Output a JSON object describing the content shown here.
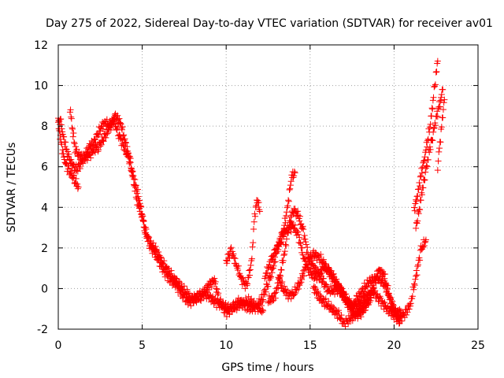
{
  "chart_data": {
    "type": "scatter",
    "title": "Day 275 of 2022, Sidereal Day-to-day VTEC variation (SDTVAR) for receiver av01",
    "xlabel": "GPS time / hours",
    "ylabel": "SDTVAR / TECUs",
    "xlim": [
      0,
      25
    ],
    "ylim": [
      -2,
      12
    ],
    "xticks": [
      "0",
      "5",
      "10",
      "15",
      "20",
      "25"
    ],
    "yticks": [
      "-2",
      "0",
      "2",
      "4",
      "6",
      "8",
      "10",
      "12"
    ],
    "grid": true,
    "marker": "+",
    "color": "#ff0000",
    "series": [
      {
        "name": "SDTVAR",
        "segments": [
          [
            [
              0.0,
              8.3
            ],
            [
              0.15,
              8.2
            ],
            [
              0.3,
              7.5
            ],
            [
              0.5,
              6.8
            ],
            [
              0.7,
              6.3
            ],
            [
              0.9,
              6.0
            ],
            [
              1.1,
              5.9
            ],
            [
              1.3,
              6.1
            ],
            [
              1.6,
              6.6
            ],
            [
              1.9,
              7.0
            ],
            [
              2.2,
              7.3
            ],
            [
              2.5,
              7.9
            ],
            [
              2.8,
              8.2
            ],
            [
              3.1,
              8.0
            ],
            [
              3.4,
              8.5
            ],
            [
              3.7,
              8.2
            ],
            [
              4.0,
              7.2
            ],
            [
              4.3,
              6.2
            ],
            [
              4.5,
              5.2
            ],
            [
              4.7,
              4.3
            ],
            [
              5.0,
              3.6
            ],
            [
              5.2,
              2.8
            ],
            [
              5.5,
              2.2
            ],
            [
              5.8,
              1.9
            ],
            [
              6.2,
              1.3
            ],
            [
              6.5,
              0.9
            ],
            [
              6.9,
              0.5
            ],
            [
              7.3,
              0.1
            ],
            [
              7.7,
              -0.3
            ],
            [
              8.1,
              -0.6
            ],
            [
              8.5,
              -0.4
            ],
            [
              9.0,
              0.2
            ],
            [
              9.3,
              0.4
            ],
            [
              9.6,
              -0.6
            ],
            [
              10.0,
              -1.2
            ],
            [
              10.4,
              -0.9
            ],
            [
              10.8,
              -0.6
            ],
            [
              11.2,
              -0.9
            ],
            [
              11.6,
              -1.0
            ],
            [
              11.9,
              -0.8
            ],
            [
              12.2,
              -0.4
            ],
            [
              12.5,
              0.3
            ],
            [
              12.8,
              1.0
            ],
            [
              13.0,
              1.8
            ],
            [
              13.3,
              2.6
            ],
            [
              13.6,
              2.9
            ],
            [
              14.0,
              3.1
            ],
            [
              14.3,
              2.6
            ],
            [
              14.6,
              1.6
            ],
            [
              14.9,
              0.9
            ],
            [
              15.2,
              0.6
            ],
            [
              15.5,
              0.6
            ],
            [
              15.8,
              1.1
            ],
            [
              16.2,
              0.8
            ],
            [
              16.5,
              0.3
            ],
            [
              16.8,
              -0.1
            ],
            [
              17.1,
              -0.6
            ],
            [
              17.5,
              -0.9
            ],
            [
              17.8,
              -0.5
            ],
            [
              18.2,
              0.0
            ],
            [
              18.6,
              0.4
            ],
            [
              19.0,
              0.5
            ],
            [
              19.4,
              0.3
            ],
            [
              19.7,
              -0.4
            ],
            [
              20.0,
              -1.1
            ],
            [
              20.3,
              -1.5
            ],
            [
              20.7,
              -1.2
            ],
            [
              21.0,
              -0.7
            ],
            [
              21.3,
              0.6
            ],
            [
              21.6,
              1.9
            ],
            [
              21.9,
              2.4
            ]
          ],
          [
            [
              0.0,
              8.1
            ],
            [
              0.2,
              7.0
            ],
            [
              0.4,
              6.2
            ],
            [
              0.6,
              5.9
            ],
            [
              0.8,
              5.6
            ],
            [
              1.0,
              5.3
            ],
            [
              1.2,
              5.0
            ]
          ],
          [
            [
              0.7,
              8.9
            ],
            [
              0.85,
              7.8
            ],
            [
              1.0,
              6.9
            ],
            [
              1.2,
              6.6
            ],
            [
              1.5,
              6.4
            ],
            [
              1.8,
              6.5
            ],
            [
              2.1,
              6.8
            ],
            [
              2.4,
              7.0
            ],
            [
              2.7,
              7.4
            ],
            [
              3.0,
              7.8
            ],
            [
              3.3,
              8.3
            ],
            [
              3.6,
              7.6
            ],
            [
              3.9,
              7.0
            ],
            [
              4.2,
              6.4
            ],
            [
              4.5,
              5.4
            ],
            [
              4.8,
              4.5
            ],
            [
              5.1,
              3.1
            ],
            [
              5.4,
              2.2
            ],
            [
              5.8,
              1.7
            ],
            [
              6.2,
              1.0
            ],
            [
              6.6,
              0.5
            ],
            [
              7.0,
              0.2
            ],
            [
              7.4,
              -0.3
            ],
            [
              7.8,
              -0.7
            ],
            [
              8.2,
              -0.4
            ],
            [
              8.6,
              -0.2
            ],
            [
              9.0,
              -0.4
            ],
            [
              9.4,
              -0.7
            ],
            [
              9.8,
              -0.8
            ],
            [
              10.2,
              -1.0
            ],
            [
              10.6,
              -0.9
            ],
            [
              11.0,
              -0.7
            ],
            [
              11.4,
              -0.6
            ],
            [
              11.8,
              -0.9
            ],
            [
              12.2,
              -1.1
            ]
          ],
          [
            [
              10.0,
              1.3
            ],
            [
              10.3,
              1.9
            ],
            [
              10.6,
              1.2
            ],
            [
              10.9,
              0.5
            ],
            [
              11.2,
              0.1
            ],
            [
              11.5,
              1.2
            ],
            [
              11.7,
              3.6
            ],
            [
              11.85,
              4.4
            ],
            [
              12.0,
              3.8
            ]
          ],
          [
            [
              12.3,
              0.6
            ],
            [
              12.7,
              1.4
            ],
            [
              13.0,
              2.0
            ],
            [
              13.3,
              2.4
            ],
            [
              13.6,
              3.7
            ],
            [
              13.9,
              5.5
            ],
            [
              14.1,
              5.7
            ]
          ],
          [
            [
              12.5,
              -0.6
            ],
            [
              12.9,
              -0.4
            ],
            [
              13.2,
              0.6
            ],
            [
              13.5,
              1.9
            ],
            [
              13.7,
              3.0
            ],
            [
              14.0,
              3.9
            ],
            [
              14.3,
              3.6
            ],
            [
              14.6,
              2.8
            ],
            [
              14.9,
              1.6
            ],
            [
              15.2,
              1.1
            ],
            [
              15.5,
              0.7
            ],
            [
              15.8,
              0.3
            ],
            [
              16.1,
              -0.1
            ],
            [
              16.4,
              -0.1
            ],
            [
              16.7,
              0.0
            ],
            [
              17.0,
              -0.4
            ],
            [
              17.3,
              -0.8
            ],
            [
              17.6,
              -1.2
            ],
            [
              17.9,
              -1.3
            ],
            [
              18.2,
              -1.1
            ],
            [
              18.5,
              -0.5
            ],
            [
              18.8,
              0.2
            ],
            [
              19.1,
              0.9
            ],
            [
              19.4,
              0.7
            ],
            [
              19.8,
              -0.6
            ],
            [
              20.1,
              -1.2
            ],
            [
              20.4,
              -1.1
            ]
          ],
          [
            [
              13.1,
              0.5
            ],
            [
              13.4,
              0.0
            ],
            [
              13.7,
              -0.3
            ],
            [
              14.0,
              -0.3
            ],
            [
              14.4,
              0.3
            ],
            [
              14.8,
              1.2
            ],
            [
              15.2,
              1.7
            ],
            [
              15.6,
              1.5
            ],
            [
              16.0,
              1.0
            ],
            [
              16.4,
              0.5
            ],
            [
              16.8,
              0.0
            ],
            [
              17.2,
              -0.5
            ],
            [
              17.6,
              -1.0
            ],
            [
              18.0,
              -0.7
            ],
            [
              18.4,
              -0.3
            ],
            [
              18.8,
              -0.2
            ],
            [
              19.2,
              -0.6
            ],
            [
              19.6,
              -1.0
            ],
            [
              20.0,
              -1.3
            ],
            [
              20.4,
              -1.6
            ]
          ],
          [
            [
              15.2,
              0.1
            ],
            [
              15.5,
              -0.4
            ],
            [
              15.9,
              -0.7
            ],
            [
              16.3,
              -1.0
            ],
            [
              16.7,
              -1.3
            ],
            [
              17.0,
              -1.7
            ],
            [
              17.4,
              -1.5
            ],
            [
              17.8,
              -1.2
            ],
            [
              18.2,
              -0.8
            ],
            [
              18.6,
              -0.6
            ]
          ],
          [
            [
              21.2,
              3.9
            ],
            [
              21.4,
              4.6
            ],
            [
              21.6,
              5.6
            ],
            [
              21.8,
              6.4
            ],
            [
              22.0,
              7.3
            ],
            [
              22.2,
              8.3
            ],
            [
              22.35,
              9.5
            ],
            [
              22.5,
              10.5
            ],
            [
              22.6,
              11.2
            ]
          ],
          [
            [
              21.3,
              3.0
            ],
            [
              21.5,
              3.9
            ],
            [
              21.7,
              4.9
            ],
            [
              21.9,
              5.8
            ],
            [
              22.1,
              6.8
            ],
            [
              22.3,
              7.5
            ],
            [
              22.5,
              8.4
            ],
            [
              22.7,
              9.0
            ],
            [
              22.9,
              9.8
            ]
          ],
          [
            [
              22.6,
              6.0
            ],
            [
              22.7,
              6.9
            ],
            [
              22.8,
              7.7
            ],
            [
              22.9,
              8.6
            ],
            [
              23.0,
              9.3
            ]
          ]
        ]
      }
    ]
  }
}
